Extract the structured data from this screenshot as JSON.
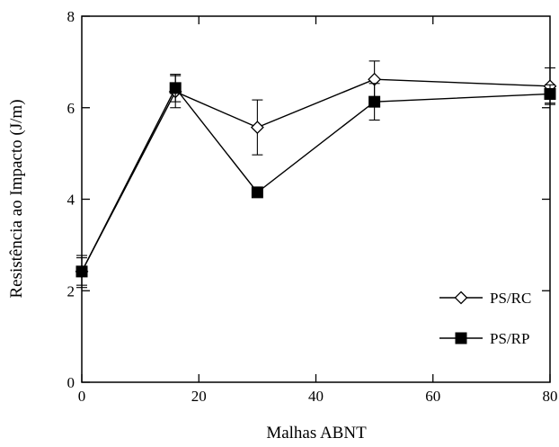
{
  "chart_data": {
    "type": "line",
    "title": "",
    "xlabel": "Malhas ABNT",
    "ylabel": "Resistência ao Impacto (J/m)",
    "xlim": [
      0,
      80
    ],
    "ylim": [
      0,
      8
    ],
    "xticks": [
      0,
      20,
      40,
      60,
      80
    ],
    "yticks": [
      0,
      2,
      4,
      6,
      8
    ],
    "grid": false,
    "legend_position": "lower-right",
    "series": [
      {
        "name": "PS/RC",
        "marker": "diamond-open",
        "x": [
          0,
          16,
          30,
          50,
          80
        ],
        "y": [
          2.42,
          6.35,
          5.57,
          6.62,
          6.47
        ],
        "err": [
          0.35,
          0.35,
          0.6,
          0.4,
          0.4
        ]
      },
      {
        "name": "PS/RP",
        "marker": "square-filled",
        "x": [
          0,
          16,
          30,
          50,
          80
        ],
        "y": [
          2.42,
          6.43,
          4.15,
          6.13,
          6.3
        ],
        "err": [
          0.3,
          0.3,
          0.1,
          0.4,
          0.2
        ]
      }
    ]
  }
}
